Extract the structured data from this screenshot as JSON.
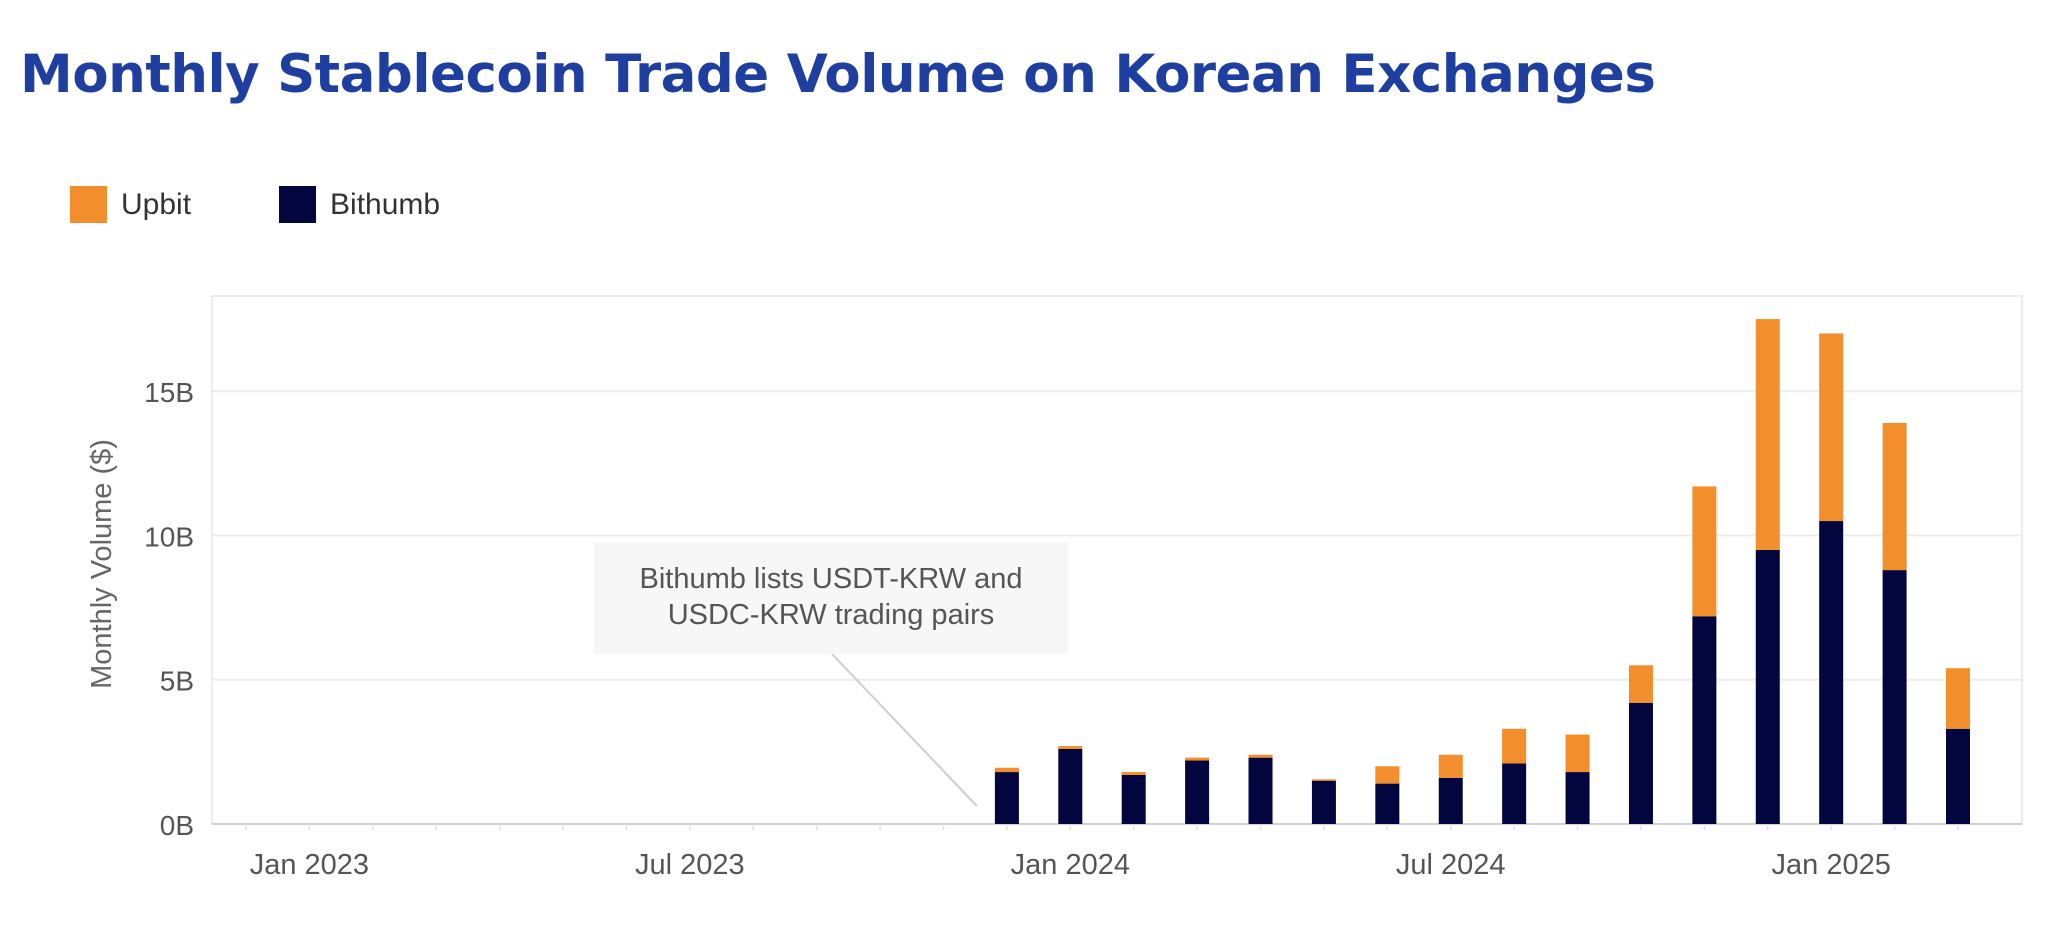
{
  "title": "Monthly Stablecoin Trade Volume on Korean Exchanges",
  "legend": [
    {
      "name": "Upbit",
      "color": "#f28e2b"
    },
    {
      "name": "Bithumb",
      "color": "#03053f"
    }
  ],
  "chart_data": {
    "type": "bar",
    "stacked": true,
    "ylabel": "Monthly Volume ($)",
    "xlabel": "",
    "ylim": [
      0,
      18.3
    ],
    "yticks": [
      {
        "value": 0,
        "label": "0B"
      },
      {
        "value": 5,
        "label": "5B"
      },
      {
        "value": 10,
        "label": "10B"
      },
      {
        "value": 15,
        "label": "15B"
      }
    ],
    "xticks": [
      {
        "month": "2023-01",
        "label": "Jan 2023"
      },
      {
        "month": "2023-07",
        "label": "Jul 2023"
      },
      {
        "month": "2024-01",
        "label": "Jan 2024"
      },
      {
        "month": "2024-07",
        "label": "Jul 2024"
      },
      {
        "month": "2025-01",
        "label": "Jan 2025"
      }
    ],
    "x_range": [
      "2022-12",
      "2025-03"
    ],
    "categories": [
      "2023-12",
      "2024-01",
      "2024-02",
      "2024-03",
      "2024-04",
      "2024-05",
      "2024-06",
      "2024-07",
      "2024-08",
      "2024-09",
      "2024-10",
      "2024-11",
      "2024-12",
      "2025-01",
      "2025-02",
      "2025-03"
    ],
    "series": [
      {
        "name": "Bithumb",
        "color": "#03053f",
        "values": [
          1.8,
          2.6,
          1.7,
          2.2,
          2.3,
          1.5,
          1.4,
          1.6,
          2.1,
          1.8,
          4.2,
          7.2,
          9.5,
          10.5,
          8.8,
          3.3
        ]
      },
      {
        "name": "Upbit",
        "color": "#f28e2b",
        "values": [
          0.15,
          0.1,
          0.1,
          0.1,
          0.1,
          0.05,
          0.6,
          0.8,
          1.2,
          1.3,
          1.3,
          4.5,
          8.0,
          6.5,
          5.1,
          2.1
        ]
      }
    ],
    "annotation": {
      "text_lines": [
        "Bithumb lists USDT-KRW and",
        "USDC-KRW trading pairs"
      ],
      "points_to": "2023-12"
    },
    "grid": true,
    "legend_position": "top-left"
  }
}
